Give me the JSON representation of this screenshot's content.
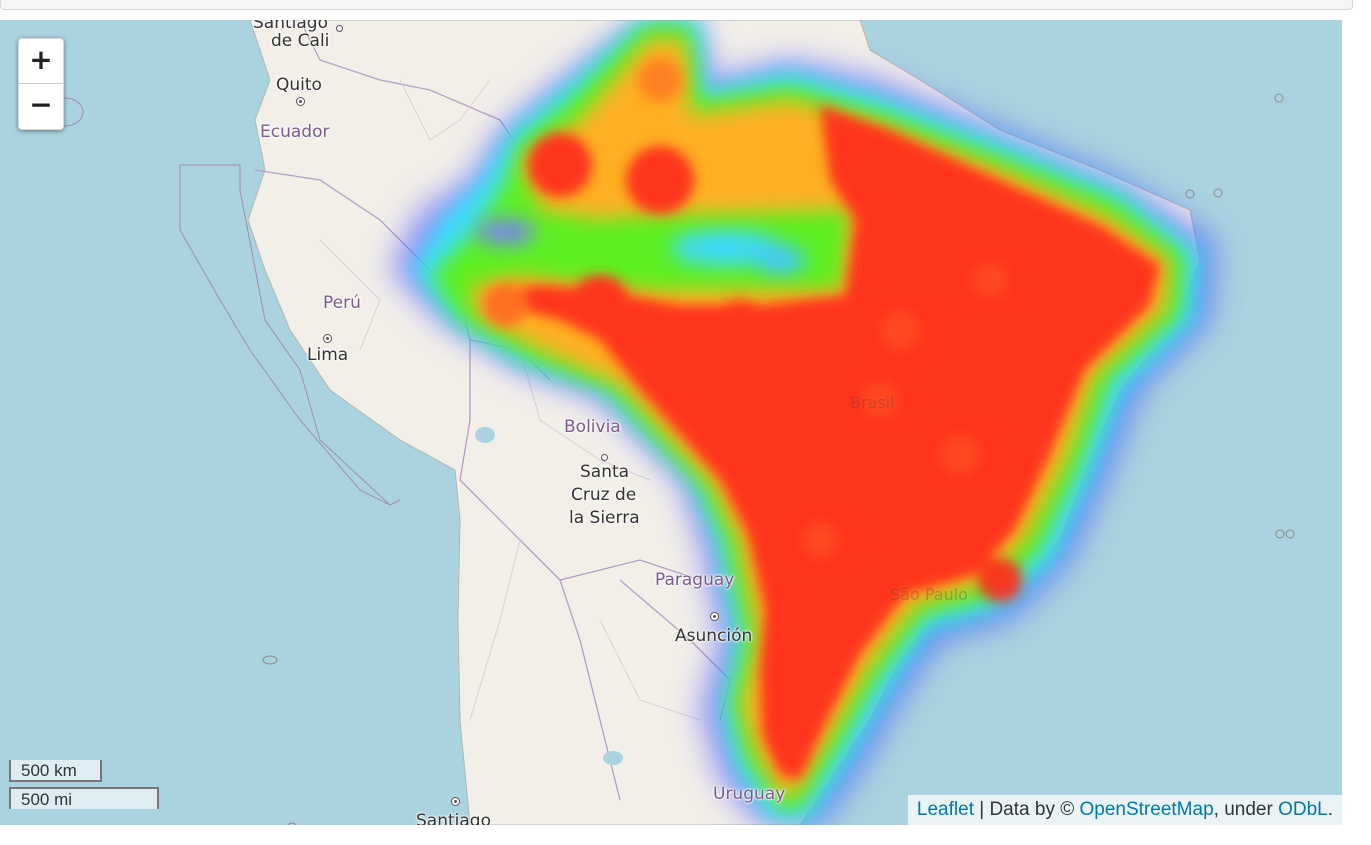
{
  "map": {
    "zoom_in_label": "+",
    "zoom_out_label": "−",
    "scale_metric": "500 km",
    "scale_imperial": "500 mi",
    "attribution": {
      "leaflet": "Leaflet",
      "sep1": " | Data by © ",
      "osm": "OpenStreetMap",
      "sep2": ", under ",
      "license": "ODbL",
      "end": "."
    },
    "labels": {
      "santiago_cali_1": "Santiago",
      "santiago_cali_2": "de Cali",
      "quito": "Quito",
      "ecuador": "Ecuador",
      "peru": "Perú",
      "lima": "Lima",
      "bolivia": "Bolivia",
      "santa_cruz_1": "Santa",
      "santa_cruz_2": "Cruz de",
      "santa_cruz_3": "la Sierra",
      "paraguay": "Paraguay",
      "asuncion": "Asunción",
      "uruguay": "Uruguay",
      "santiago_chile": "Santiago",
      "brasil": "Brasil",
      "sao_paulo": "São Paulo"
    },
    "colors": {
      "water": "#aad3df",
      "land": "#f2efe9",
      "heat_low": "#0000ff",
      "heat_mid": "#00ff00",
      "heat_high": "#ff0000"
    }
  }
}
